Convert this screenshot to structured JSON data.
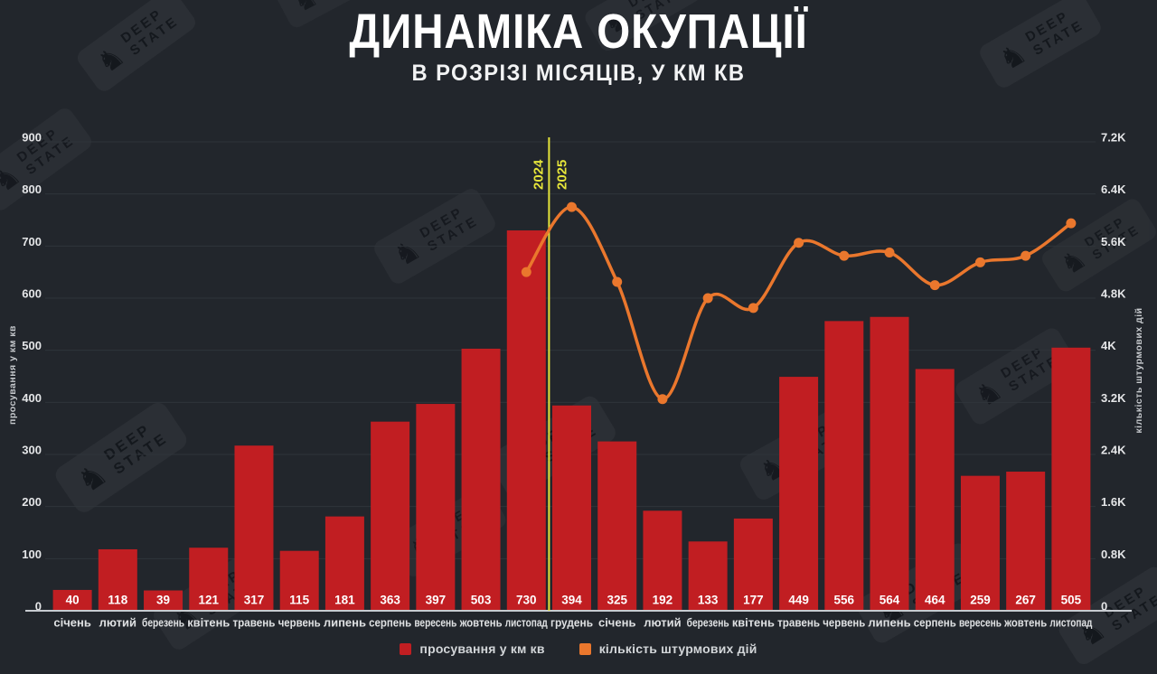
{
  "title": "ДИНАМІКА ОКУПАЦІЇ",
  "subtitle": "В РОЗРІЗІ МІСЯЦІВ, У КМ КВ",
  "watermark": {
    "line1": "DEEP",
    "line2": "STATE",
    "icon": "knight-icon"
  },
  "colors": {
    "background": "#22262c",
    "bar": "#c11e22",
    "line": "#ea772d",
    "year_divider": "#e5e43a",
    "gridline": "#2f343a",
    "baseline": "#c7cbd0",
    "tick_text": "#e4e5e7",
    "month_text": "#dfe1e3",
    "value_text": "#ffffff",
    "axis_title_text": "#c6c9cd"
  },
  "chart_data": {
    "type": "bar",
    "subtype": "combo-bar-line-dual-axis",
    "categories": [
      "січень",
      "лютий",
      "березень",
      "квітень",
      "травень",
      "червень",
      "липень",
      "серпень",
      "вересень",
      "жовтень",
      "листопад",
      "грудень",
      "січень",
      "лютий",
      "березень",
      "квітень",
      "травень",
      "червень",
      "липень",
      "серпень",
      "вересень",
      "жовтень",
      "листопад"
    ],
    "series": [
      {
        "name": "просування у км кв",
        "type": "bar",
        "axis": "left",
        "color": "#c11e22",
        "values": [
          40,
          118,
          39,
          121,
          317,
          115,
          181,
          363,
          397,
          503,
          730,
          394,
          325,
          192,
          133,
          177,
          449,
          556,
          564,
          464,
          259,
          267,
          505
        ]
      },
      {
        "name": "кількість штурмових дій",
        "type": "line",
        "axis": "right",
        "color": "#ea772d",
        "values": [
          null,
          null,
          null,
          null,
          null,
          null,
          null,
          null,
          null,
          null,
          5200,
          6200,
          5050,
          3250,
          4800,
          4650,
          5650,
          5450,
          5500,
          5000,
          5350,
          5450,
          5950
        ]
      }
    ],
    "left_axis": {
      "label": "просування у км кв",
      "min": 0,
      "max": 900,
      "ticks": [
        "0",
        "100",
        "200",
        "300",
        "400",
        "500",
        "600",
        "700",
        "800",
        "900"
      ]
    },
    "right_axis": {
      "label": "кількість штурмових дій",
      "min": 0,
      "max": 7200,
      "ticks": [
        "0",
        "0.8K",
        "1.6K",
        "2.4K",
        "3.2K",
        "4K",
        "4.8K",
        "5.6K",
        "6.4K",
        "7.2K"
      ]
    },
    "year_divider": {
      "after_category_index": 10,
      "left_label": "2024",
      "right_label": "2025",
      "color": "#e5e43a"
    },
    "legend": [
      {
        "label": "просування у км кв",
        "color": "#c11e22"
      },
      {
        "label": "кількість штурмових дій",
        "color": "#ea772d"
      }
    ],
    "grid": true,
    "legend_position": "bottom-center"
  }
}
